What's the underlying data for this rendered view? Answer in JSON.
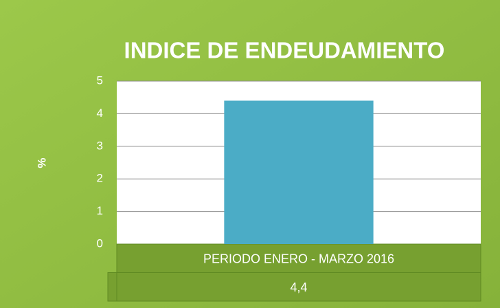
{
  "chart_data": {
    "type": "bar",
    "title": "INDICE DE ENDEUDAMIENTO",
    "y_label": "%",
    "categories": [
      "PERIODO ENERO - MARZO 2016"
    ],
    "values": [
      4.4
    ],
    "value_labels": [
      "4,4"
    ],
    "color": "#4bacc6",
    "ylim": [
      0,
      5
    ],
    "yticks": [
      0,
      1,
      2,
      3,
      4,
      5
    ],
    "grid": true
  }
}
